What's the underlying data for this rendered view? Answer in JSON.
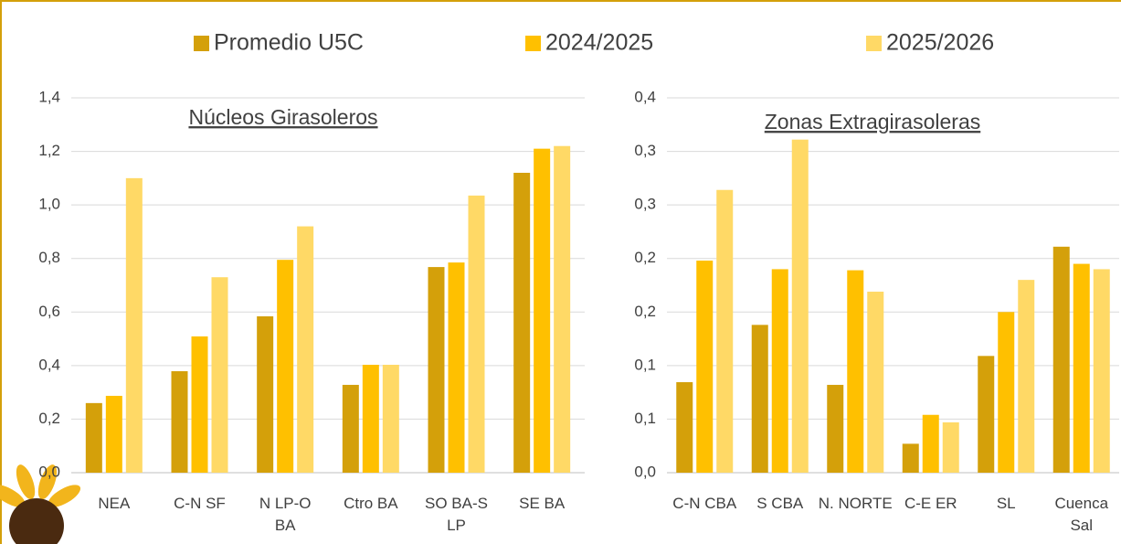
{
  "chart_data": [
    {
      "type": "bar",
      "title": "Núcleos Girasoleros",
      "categories": [
        "NEA",
        "C-N SF",
        "N LP-O BA",
        "Ctro BA",
        "SO BA-S LP",
        "SE BA"
      ],
      "series": [
        {
          "name": "Promedio U5C",
          "color": "#d4a00a",
          "values": [
            0.26,
            0.379,
            0.584,
            0.328,
            0.768,
            1.12
          ]
        },
        {
          "name": "2024/2025",
          "color": "#ffc000",
          "values": [
            0.287,
            0.509,
            0.795,
            0.403,
            0.785,
            1.21
          ]
        },
        {
          "name": "2025/2026",
          "color": "#ffd966",
          "values": [
            1.1,
            0.73,
            0.92,
            0.403,
            1.035,
            1.22
          ]
        }
      ],
      "ylim": [
        0,
        1.4
      ],
      "yticks": [
        {
          "value": 0,
          "label": "0,0"
        },
        {
          "value": 0.2,
          "label": "0,2"
        },
        {
          "value": 0.4,
          "label": "0,4"
        },
        {
          "value": 0.6,
          "label": "0,6"
        },
        {
          "value": 0.8,
          "label": "0,8"
        },
        {
          "value": 1.0,
          "label": "1,0"
        },
        {
          "value": 1.2,
          "label": "1,2"
        },
        {
          "value": 1.4,
          "label": "1,4"
        }
      ],
      "grid": true
    },
    {
      "type": "bar",
      "title": "Zonas Extragirasoleras",
      "categories": [
        "C-N CBA",
        "S CBA",
        "N. NORTE",
        "C-E ER",
        "SL",
        "Cuenca Sal"
      ],
      "series": [
        {
          "color": "#d4a00a",
          "values": [
            0.0845,
            0.138,
            0.082,
            0.027,
            0.109,
            0.211
          ]
        },
        {
          "color": "#ffc000",
          "values": [
            0.198,
            0.19,
            0.189,
            0.054,
            0.15,
            0.195
          ]
        },
        {
          "color": "#ffd966",
          "values": [
            0.264,
            0.311,
            0.169,
            0.047,
            0.18,
            0.19
          ]
        }
      ],
      "ylim": [
        0,
        0.35
      ],
      "yticks": [
        {
          "value": 0,
          "label": "0,0"
        },
        {
          "value": 0.05,
          "label": "0,1"
        },
        {
          "value": 0.1,
          "label": "0,1"
        },
        {
          "value": 0.15,
          "label": "0,2"
        },
        {
          "value": 0.2,
          "label": "0,2"
        },
        {
          "value": 0.25,
          "label": "0,3"
        },
        {
          "value": 0.3,
          "label": "0,3"
        },
        {
          "value": 0.35,
          "label": "0,4"
        }
      ],
      "grid": true
    }
  ]
}
